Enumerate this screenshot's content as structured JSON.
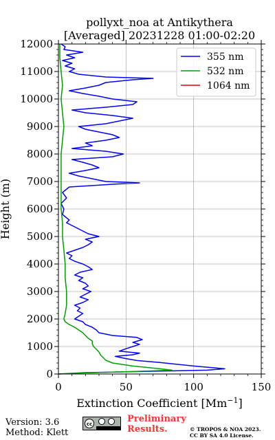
{
  "chart_data": {
    "type": "line",
    "title": "pollyxt_noa at Antikythera",
    "subtitle": "[Averaged] 20231228 01:00-02:20",
    "xlabel": "Extinction Coefficient [Mm",
    "xlabel_sup": "−1",
    "xlabel_close": "]",
    "ylabel": "Height (m)",
    "xlim": [
      0,
      150
    ],
    "ylim": [
      0,
      12000
    ],
    "xticks": [
      0,
      50,
      100,
      150
    ],
    "yticks": [
      0,
      1000,
      2000,
      3000,
      4000,
      5000,
      6000,
      7000,
      8000,
      9000,
      10000,
      11000,
      12000
    ],
    "grid": true,
    "legend_position": "top-right",
    "series": [
      {
        "name": "355 nm",
        "color": "#0000ff",
        "points": [
          [
            0,
            0
          ],
          [
            20,
            50
          ],
          [
            60,
            90
          ],
          [
            110,
            140
          ],
          [
            123,
            190
          ],
          [
            100,
            290
          ],
          [
            75,
            420
          ],
          [
            58,
            490
          ],
          [
            50,
            560
          ],
          [
            42,
            640
          ],
          [
            55,
            700
          ],
          [
            60,
            760
          ],
          [
            45,
            830
          ],
          [
            50,
            920
          ],
          [
            55,
            1000
          ],
          [
            60,
            1080
          ],
          [
            55,
            1150
          ],
          [
            62,
            1250
          ],
          [
            58,
            1330
          ],
          [
            40,
            1400
          ],
          [
            30,
            1500
          ],
          [
            28,
            1600
          ],
          [
            25,
            1700
          ],
          [
            20,
            1800
          ],
          [
            18,
            1900
          ],
          [
            12,
            2000
          ],
          [
            15,
            2100
          ],
          [
            18,
            2200
          ],
          [
            14,
            2300
          ],
          [
            16,
            2400
          ],
          [
            12,
            2500
          ],
          [
            18,
            2600
          ],
          [
            22,
            2700
          ],
          [
            16,
            2800
          ],
          [
            20,
            2900
          ],
          [
            24,
            3000
          ],
          [
            18,
            3100
          ],
          [
            22,
            3200
          ],
          [
            20,
            3300
          ],
          [
            15,
            3400
          ],
          [
            18,
            3500
          ],
          [
            12,
            3600
          ],
          [
            16,
            3700
          ],
          [
            25,
            3800
          ],
          [
            22,
            3900
          ],
          [
            18,
            4000
          ],
          [
            12,
            4100
          ],
          [
            8,
            4200
          ],
          [
            10,
            4300
          ],
          [
            6,
            4400
          ],
          [
            12,
            4500
          ],
          [
            18,
            4600
          ],
          [
            22,
            4700
          ],
          [
            25,
            4800
          ],
          [
            20,
            4900
          ],
          [
            30,
            5000
          ],
          [
            22,
            5100
          ],
          [
            18,
            5200
          ],
          [
            14,
            5300
          ],
          [
            10,
            5400
          ],
          [
            6,
            5500
          ],
          [
            8,
            5600
          ],
          [
            3,
            5800
          ],
          [
            4,
            6000
          ],
          [
            2,
            6200
          ],
          [
            6,
            6400
          ],
          [
            3,
            6600
          ],
          [
            8,
            6800
          ],
          [
            40,
            6900
          ],
          [
            60,
            6950
          ],
          [
            35,
            7000
          ],
          [
            25,
            7100
          ],
          [
            15,
            7200
          ],
          [
            8,
            7300
          ],
          [
            20,
            7400
          ],
          [
            30,
            7500
          ],
          [
            25,
            7600
          ],
          [
            18,
            7700
          ],
          [
            10,
            7800
          ],
          [
            40,
            7900
          ],
          [
            48,
            8000
          ],
          [
            35,
            8100
          ],
          [
            10,
            8200
          ],
          [
            25,
            8300
          ],
          [
            20,
            8400
          ],
          [
            35,
            8500
          ],
          [
            45,
            8600
          ],
          [
            40,
            8700
          ],
          [
            30,
            8800
          ],
          [
            20,
            8900
          ],
          [
            15,
            9000
          ],
          [
            35,
            9100
          ],
          [
            45,
            9200
          ],
          [
            55,
            9300
          ],
          [
            40,
            9400
          ],
          [
            20,
            9500
          ],
          [
            10,
            9600
          ],
          [
            35,
            9700
          ],
          [
            55,
            9800
          ],
          [
            58,
            9900
          ],
          [
            40,
            10000
          ],
          [
            30,
            10100
          ],
          [
            18,
            10200
          ],
          [
            8,
            10300
          ],
          [
            20,
            10400
          ],
          [
            30,
            10500
          ],
          [
            35,
            10600
          ],
          [
            55,
            10700
          ],
          [
            70,
            10750
          ],
          [
            35,
            10800
          ],
          [
            15,
            10900
          ],
          [
            8,
            11000
          ],
          [
            12,
            11100
          ],
          [
            5,
            11200
          ],
          [
            10,
            11300
          ],
          [
            3,
            11400
          ],
          [
            12,
            11500
          ],
          [
            6,
            11600
          ],
          [
            18,
            11700
          ],
          [
            4,
            11800
          ],
          [
            5,
            11900
          ],
          [
            2,
            12000
          ]
        ]
      },
      {
        "name": "532 nm",
        "color": "#00a000",
        "points": [
          [
            0,
            0
          ],
          [
            20,
            40
          ],
          [
            55,
            90
          ],
          [
            84,
            140
          ],
          [
            75,
            190
          ],
          [
            55,
            290
          ],
          [
            40,
            400
          ],
          [
            35,
            500
          ],
          [
            33,
            600
          ],
          [
            31,
            700
          ],
          [
            30,
            800
          ],
          [
            28,
            900
          ],
          [
            26,
            1000
          ],
          [
            25,
            1100
          ],
          [
            25,
            1200
          ],
          [
            22,
            1300
          ],
          [
            20,
            1400
          ],
          [
            18,
            1500
          ],
          [
            15,
            1600
          ],
          [
            12,
            1700
          ],
          [
            8,
            1800
          ],
          [
            5,
            1900
          ],
          [
            4,
            2000
          ],
          [
            5,
            2200
          ],
          [
            6,
            2500
          ],
          [
            6,
            3000
          ],
          [
            5,
            3500
          ],
          [
            5,
            4000
          ],
          [
            4,
            4500
          ],
          [
            3,
            5000
          ],
          [
            3,
            5500
          ],
          [
            2,
            6000
          ],
          [
            2,
            6500
          ],
          [
            2,
            7000
          ],
          [
            2,
            7500
          ],
          [
            2,
            8000
          ],
          [
            3,
            8500
          ],
          [
            4,
            9000
          ],
          [
            3,
            9500
          ],
          [
            2,
            10000
          ],
          [
            3,
            10500
          ],
          [
            2,
            11000
          ],
          [
            1,
            11500
          ],
          [
            1,
            12000
          ]
        ]
      },
      {
        "name": "1064 nm",
        "color": "#e00000",
        "points": []
      }
    ]
  },
  "footer": {
    "version": "Version: 3.6",
    "method": "Method: Klett",
    "preliminary_line1": "Preliminary",
    "preliminary_line2": "Results.",
    "copyright_line1": "© TROPOS & NOA 2023.",
    "copyright_line2": "CC BY SA 4.0 License.",
    "license_badge": "cc-by-sa-badge"
  }
}
